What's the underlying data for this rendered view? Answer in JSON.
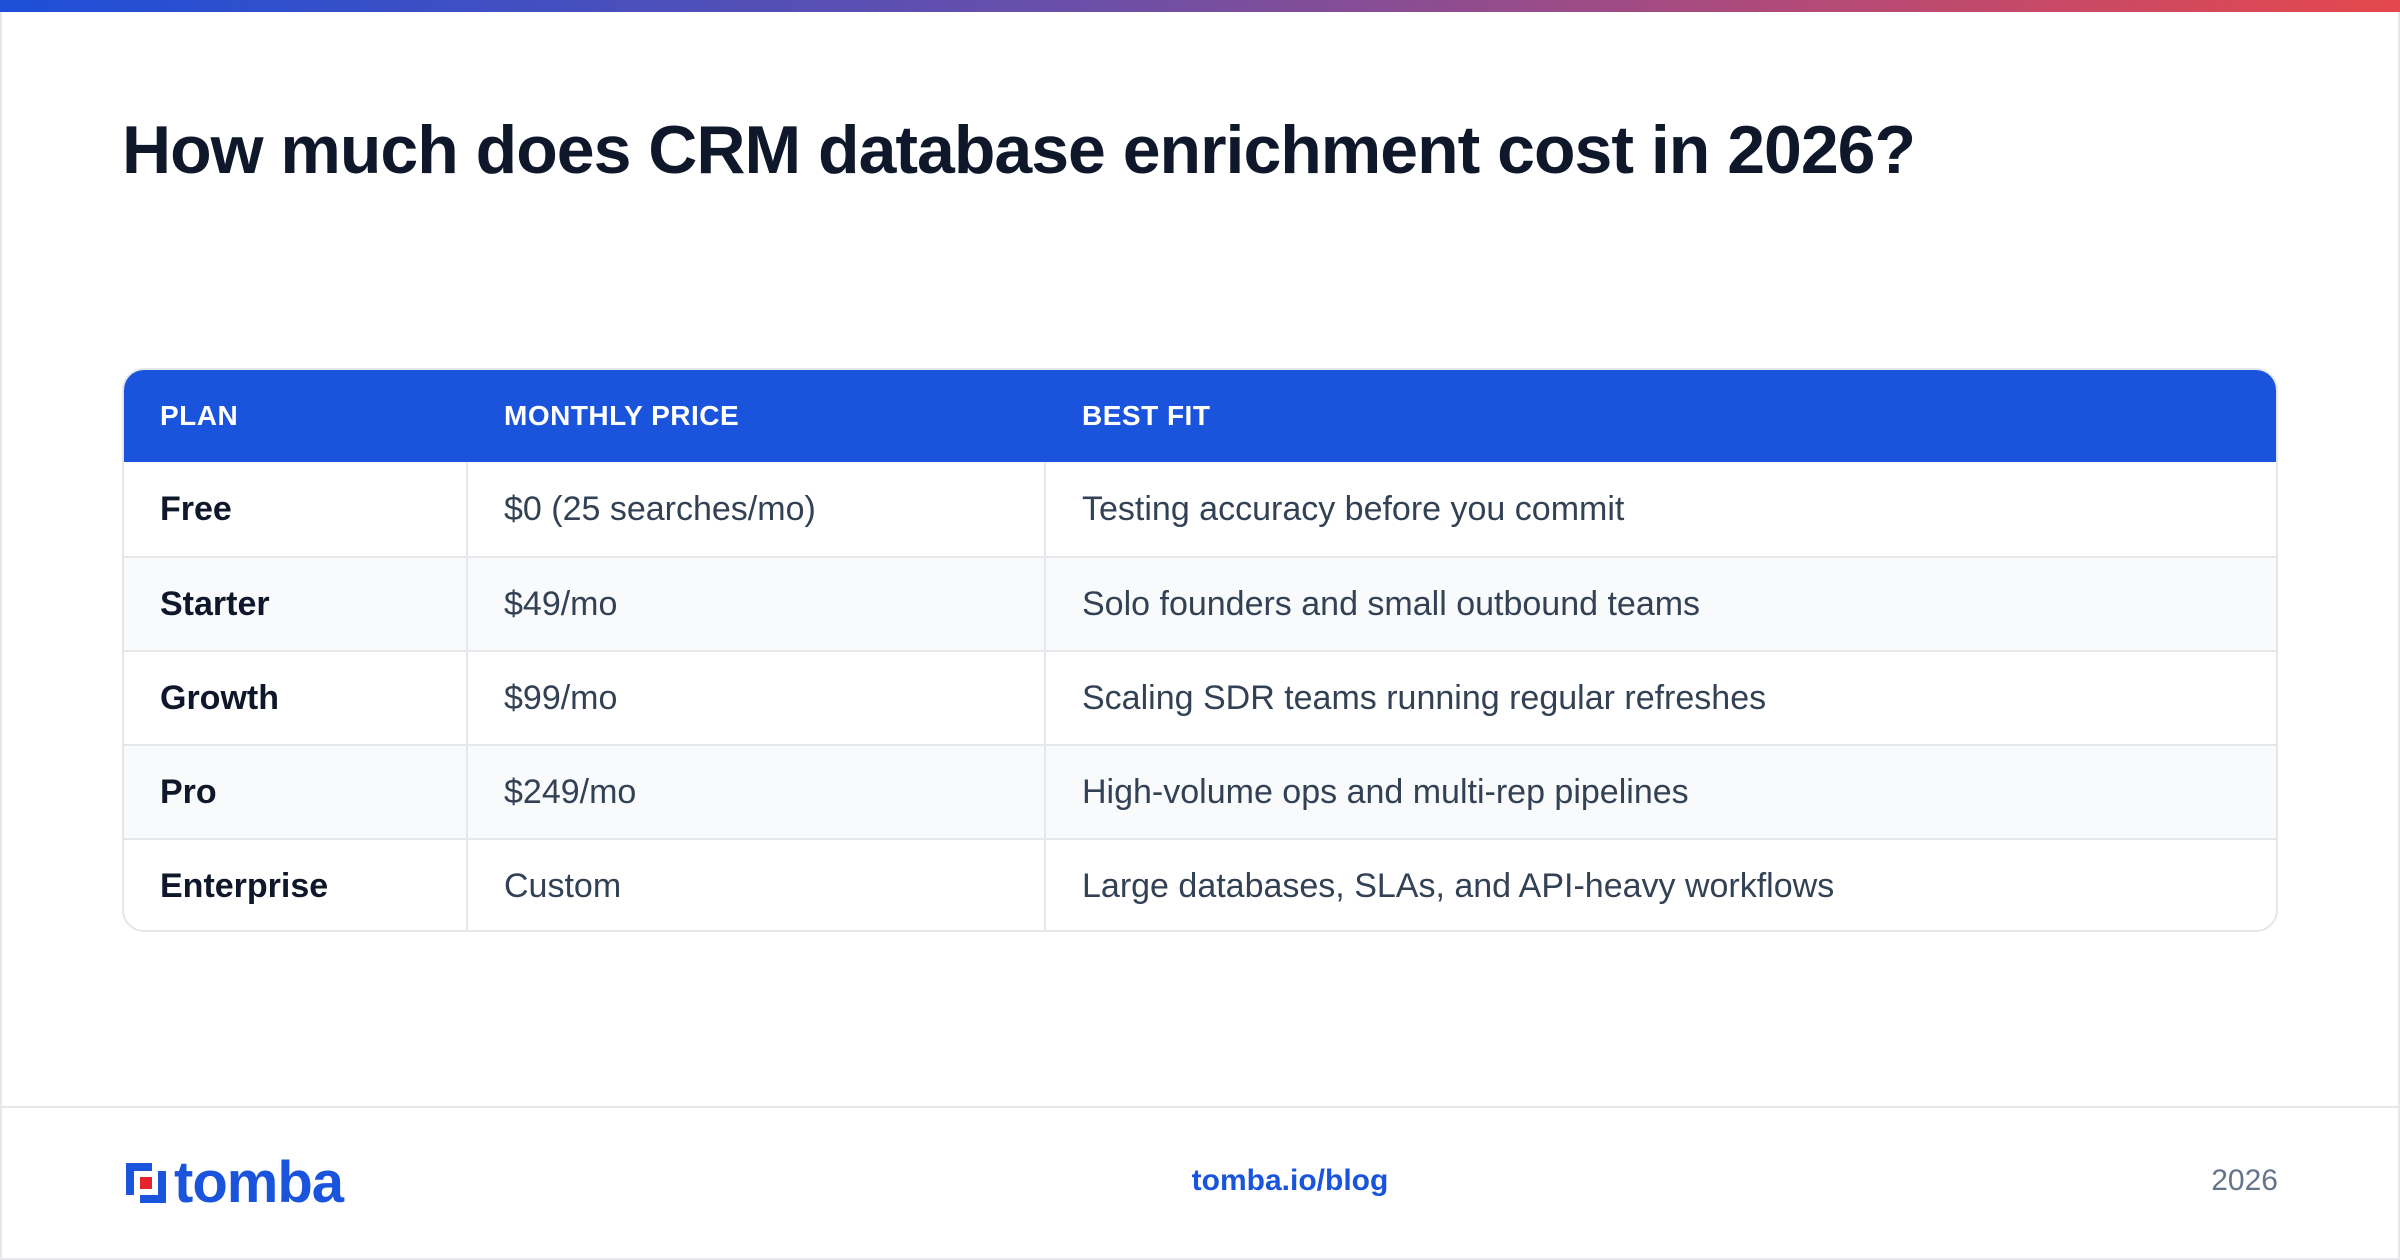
{
  "title": "How much does CRM database enrichment cost in 2026?",
  "table": {
    "headers": [
      "PLAN",
      "MONTHLY PRICE",
      "BEST FIT"
    ],
    "rows": [
      [
        "Free",
        "$0 (25 searches/mo)",
        "Testing accuracy before you commit"
      ],
      [
        "Starter",
        "$49/mo",
        "Solo founders and small outbound teams"
      ],
      [
        "Growth",
        "$99/mo",
        "Scaling SDR teams running regular refreshes"
      ],
      [
        "Pro",
        "$249/mo",
        "High-volume ops and multi-rep pipelines"
      ],
      [
        "Enterprise",
        "Custom",
        "Large databases, SLAs, and API-heavy workflows"
      ]
    ]
  },
  "footer": {
    "logo_text": "tomba",
    "url": "tomba.io/blog",
    "year": "2026"
  },
  "colors": {
    "accent": "#1a54dc",
    "logo_red": "#e5242b"
  },
  "icons": {
    "logo": "tomba-logo-icon"
  }
}
